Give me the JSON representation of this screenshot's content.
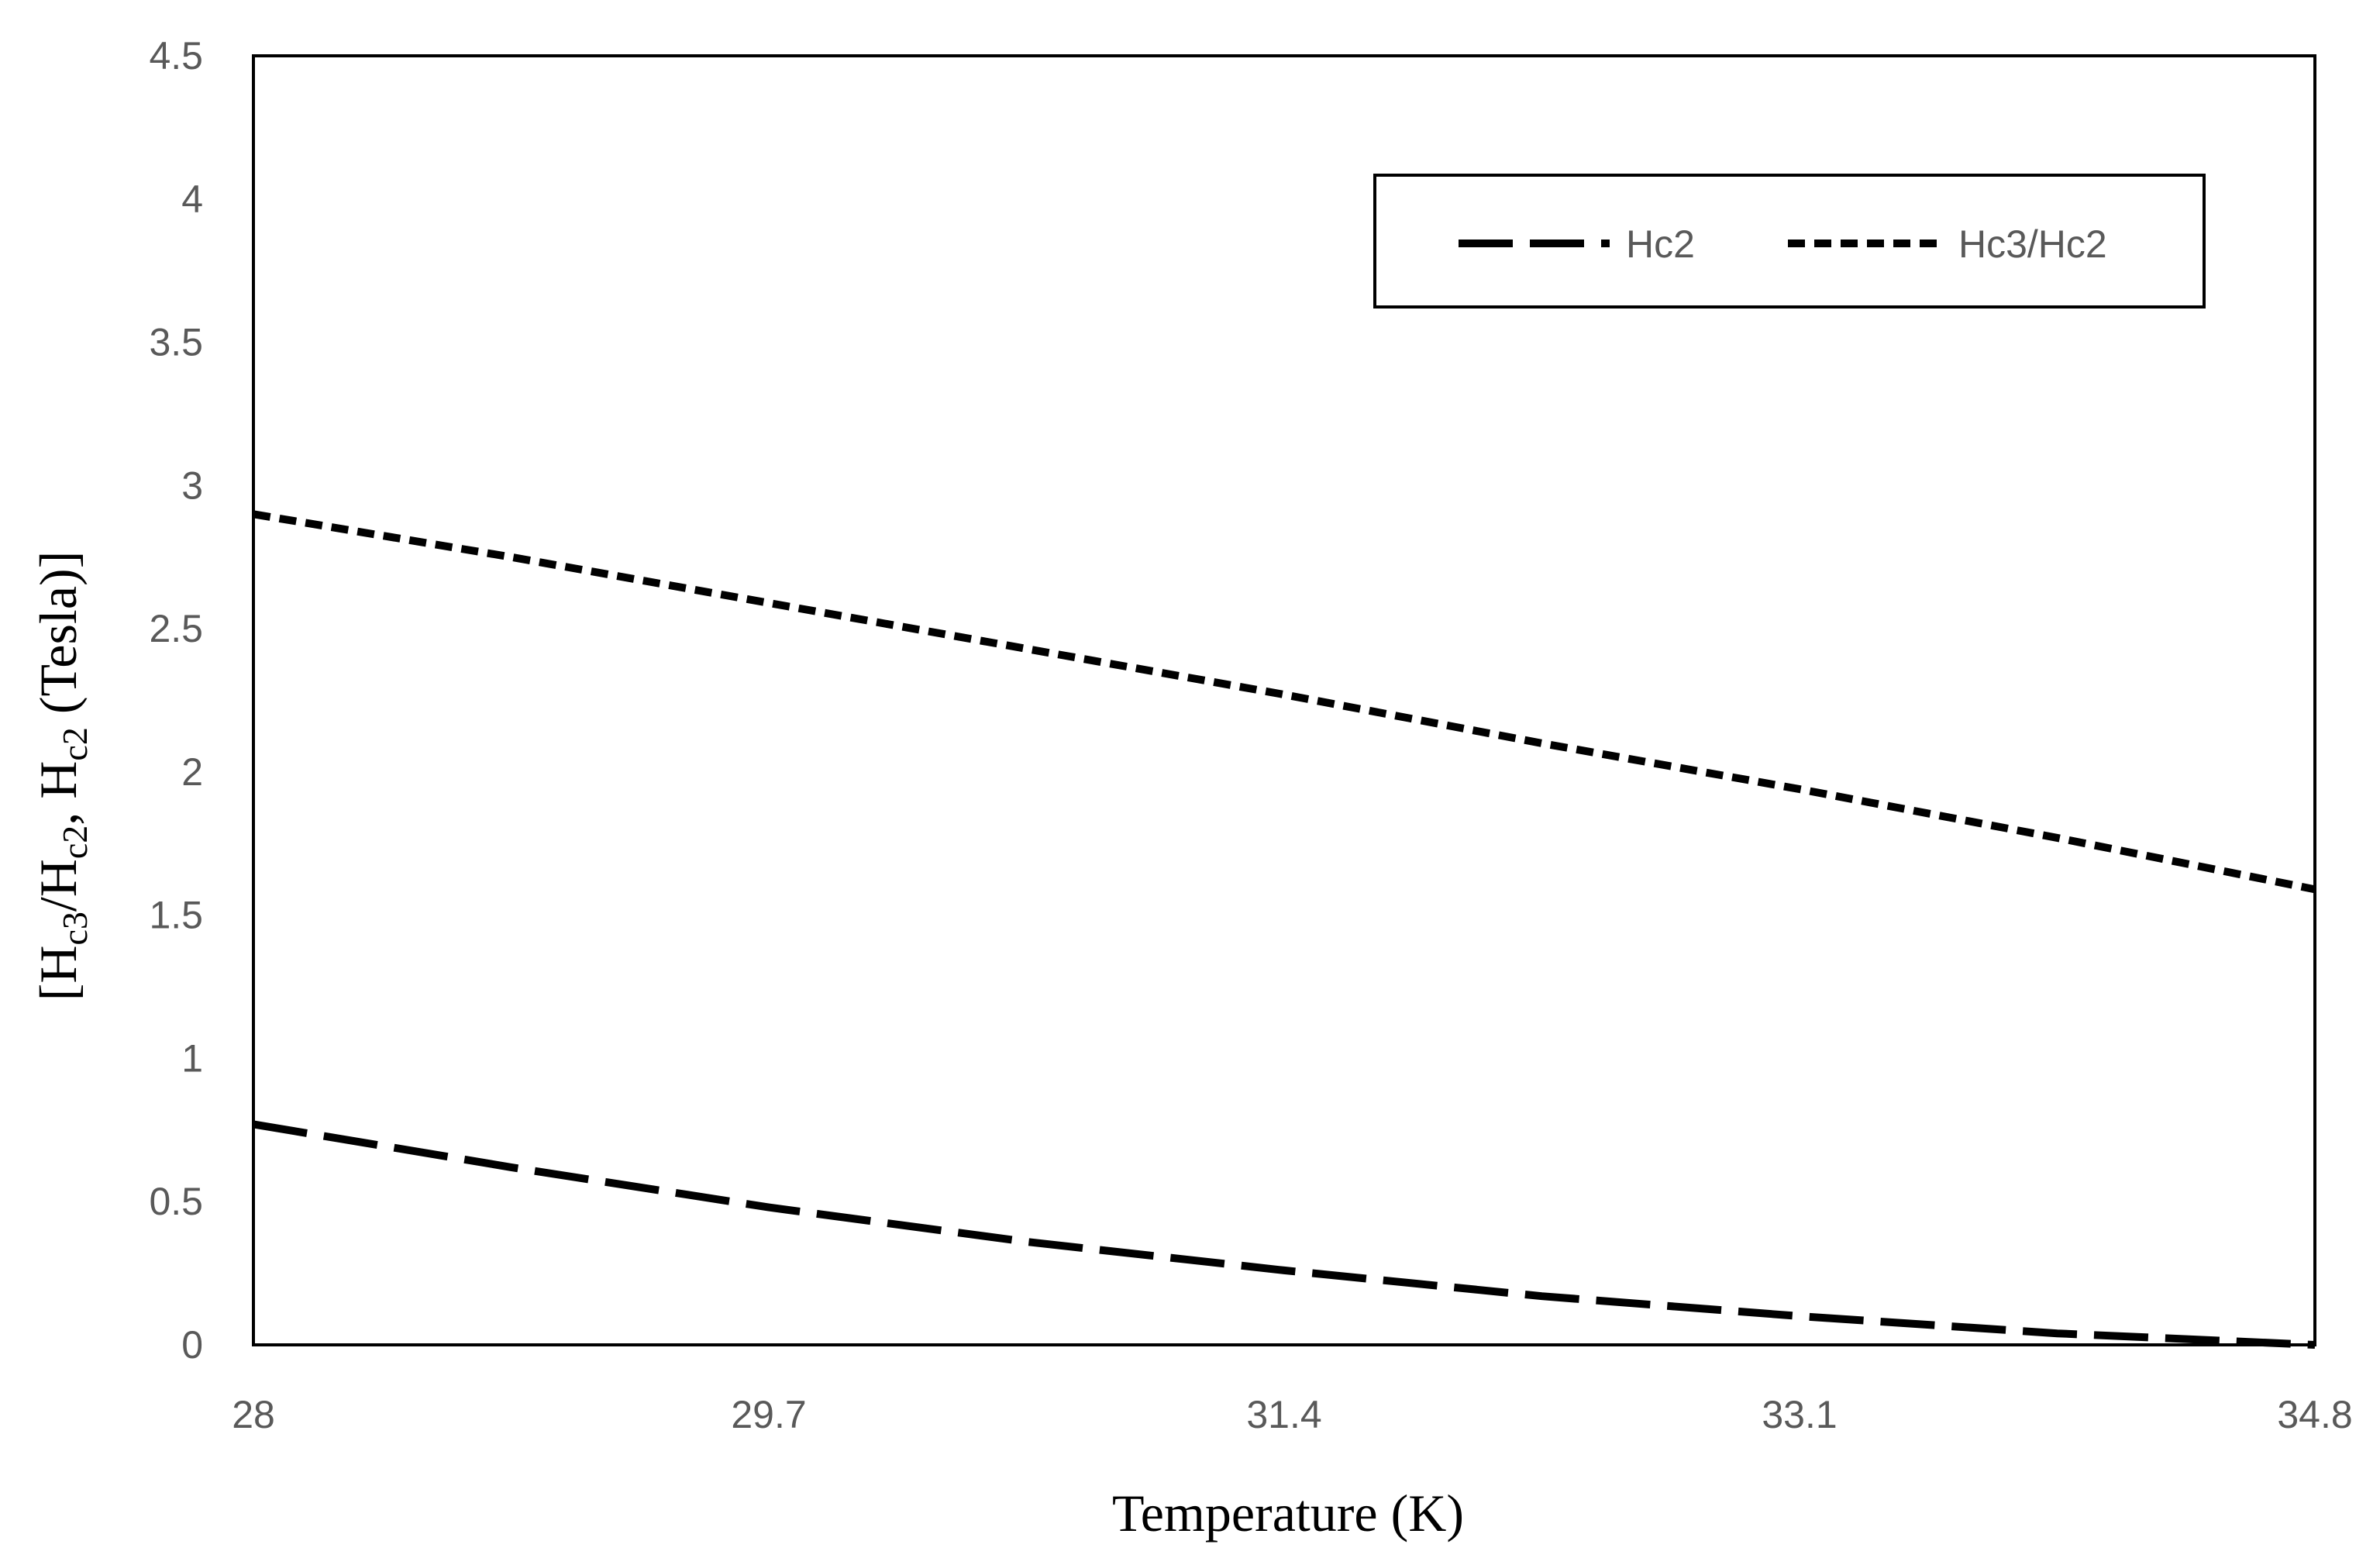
{
  "chart_data": {
    "type": "line",
    "title": "",
    "xlabel": "Temperature (K)",
    "ylabel": {
      "parts": [
        "[H",
        "c3",
        "/H",
        "c2",
        ", H",
        "c2",
        " (Tesla)]"
      ],
      "full": "[Hc3/Hc2, Hc2 (Tesla)]"
    },
    "x_ticks": [
      "28",
      "29.7",
      "31.4",
      "33.1",
      "34.8"
    ],
    "y_ticks": [
      "0",
      "0.5",
      "1",
      "1.5",
      "2",
      "2.5",
      "3",
      "3.5",
      "4",
      "4.5"
    ],
    "xlim": [
      28,
      34.8
    ],
    "ylim": [
      0,
      4.5
    ],
    "grid": false,
    "legend_position": "top-right",
    "series": [
      {
        "name": "Hc2",
        "style": "long-dash",
        "color": "#000000",
        "x": [
          28,
          28.85,
          29.7,
          30.55,
          31.4,
          32.25,
          33.1,
          33.95,
          34.8
        ],
        "y": [
          0.77,
          0.62,
          0.48,
          0.36,
          0.26,
          0.17,
          0.1,
          0.04,
          0.0
        ]
      },
      {
        "name": "Hc3/Hc2",
        "style": "short-dash",
        "color": "#000000",
        "x": [
          28,
          28.85,
          29.7,
          30.55,
          31.4,
          32.25,
          33.1,
          33.95,
          34.8
        ],
        "y": [
          2.9,
          2.75,
          2.59,
          2.43,
          2.27,
          2.1,
          1.94,
          1.77,
          1.59
        ]
      }
    ]
  }
}
